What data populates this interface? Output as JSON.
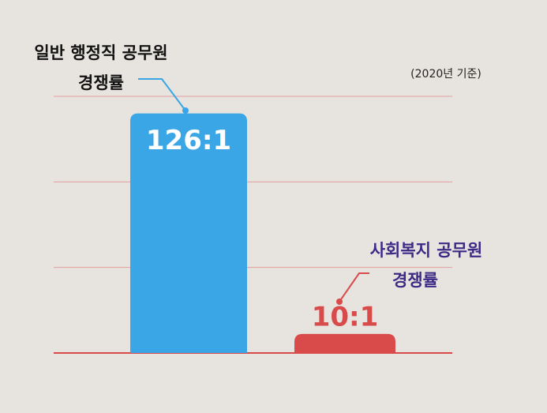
{
  "chart_data": {
    "type": "bar",
    "note": "(2020년 기준)",
    "categories": [
      [
        "일반 행정직 공무원",
        "경쟁률"
      ],
      [
        "사회복지 공무원",
        "경쟁률"
      ]
    ],
    "values": [
      126,
      10
    ],
    "value_labels": [
      "126:1",
      "10:1"
    ],
    "colors": [
      "#3aa6e6",
      "#d94a4a"
    ],
    "label_colors": [
      "#111111",
      "#3b2a86"
    ],
    "ylim": [
      0,
      135
    ],
    "yticks": [
      0,
      45,
      90,
      135
    ],
    "grid": true
  }
}
